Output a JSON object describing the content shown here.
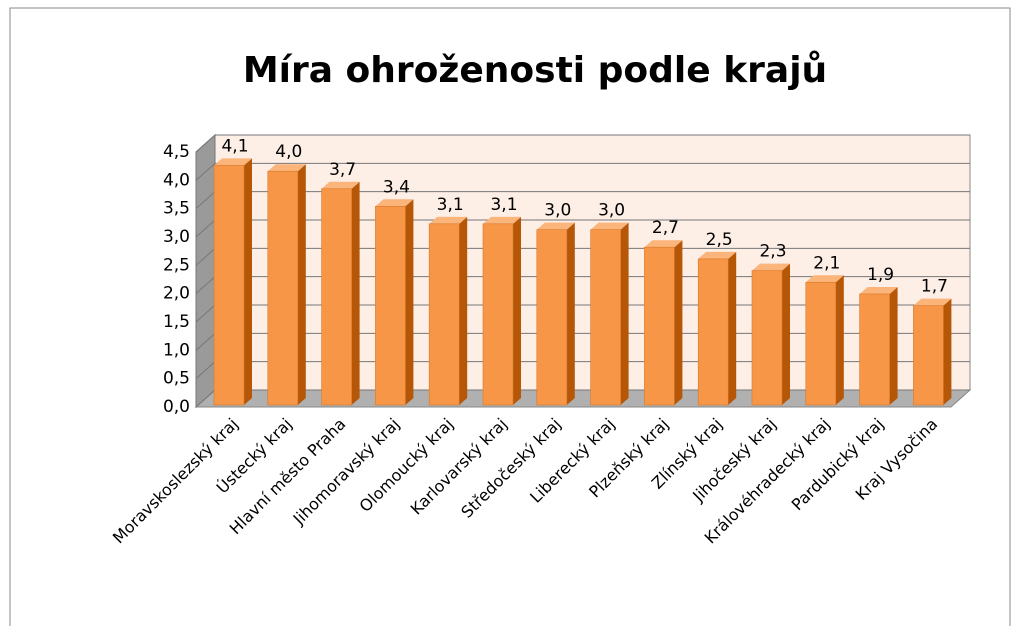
{
  "chart_data": {
    "type": "bar3d",
    "title": "Míra ohroženosti podle krajů",
    "categories": [
      "Moravskoslezský kraj",
      "Ústecký kraj",
      "Hlavní město Praha",
      "Jihomoravský kraj",
      "Olomoucký kraj",
      "Karlovarský kraj",
      "Středočeský kraj",
      "Liberecký kraj",
      "Plzeňský kraj",
      "Zlínský kraj",
      "Jihočeský kraj",
      "Královéhradecký kraj",
      "Pardubický kraj",
      "Kraj Vysočina"
    ],
    "values": [
      4.1,
      4.0,
      3.7,
      3.4,
      3.1,
      3.1,
      3.0,
      3.0,
      2.7,
      2.5,
      2.3,
      2.1,
      1.9,
      1.7
    ],
    "value_labels": [
      "4,1",
      "4,0",
      "3,7",
      "3,4",
      "3,1",
      "3,1",
      "3,0",
      "3,0",
      "2,7",
      "2,5",
      "2,3",
      "2,1",
      "1,9",
      "1,7"
    ],
    "color": "#f79646",
    "ylim": [
      0,
      4.5
    ],
    "yticks": [
      {
        "value": 0,
        "label": "0,0"
      },
      {
        "value": 0.5,
        "label": "0,5"
      },
      {
        "value": 1,
        "label": "1,0"
      },
      {
        "value": 1.5,
        "label": "1,5"
      },
      {
        "value": 2,
        "label": "2,0"
      },
      {
        "value": 2.5,
        "label": "2,5"
      },
      {
        "value": 3,
        "label": "3,0"
      },
      {
        "value": 3.5,
        "label": "3,5"
      },
      {
        "value": 4,
        "label": "4,0"
      },
      {
        "value": 4.5,
        "label": "4,5"
      }
    ],
    "grid": true
  }
}
